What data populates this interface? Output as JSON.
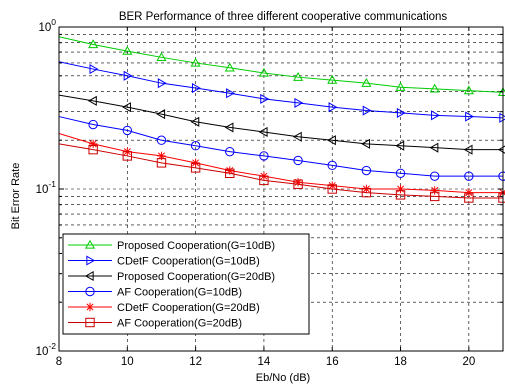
{
  "chart_data": {
    "type": "line",
    "title": "BER Performance of three different cooperative communications",
    "xlabel": "Eb/No (dB)",
    "ylabel": "Bit Error Rate",
    "x": [
      8,
      9,
      10,
      11,
      12,
      13,
      14,
      15,
      16,
      17,
      18,
      19,
      20,
      21
    ],
    "xlim": [
      8,
      21
    ],
    "ylim": [
      0.01,
      1
    ],
    "yscale": "log",
    "x_ticks": [
      8,
      10,
      12,
      14,
      16,
      18,
      20
    ],
    "x_tick_labels": [
      "8",
      "10",
      "12",
      "14",
      "16",
      "18",
      "20"
    ],
    "y_ticks": [
      0.01,
      0.1,
      1
    ],
    "y_tick_labels": [
      {
        "base": "10",
        "exp": "-2"
      },
      {
        "base": "10",
        "exp": "-1"
      },
      {
        "base": "10",
        "exp": "0"
      }
    ],
    "grid": true,
    "legend_position": "bottom-left",
    "series": [
      {
        "name": "Proposed Cooperation(G=10dB)",
        "color": "#00cc00",
        "marker": "triangle-up",
        "values": [
          0.87,
          0.78,
          0.71,
          0.65,
          0.6,
          0.56,
          0.52,
          0.49,
          0.47,
          0.45,
          0.425,
          0.415,
          0.405,
          0.395
        ]
      },
      {
        "name": "CDetF Cooperation(G=10dB)",
        "color": "#0000ff",
        "marker": "triangle-right",
        "values": [
          0.61,
          0.55,
          0.5,
          0.45,
          0.42,
          0.39,
          0.36,
          0.34,
          0.32,
          0.305,
          0.295,
          0.285,
          0.28,
          0.275
        ]
      },
      {
        "name": "Proposed Cooperation(G=20dB)",
        "color": "#000000",
        "marker": "triangle-left",
        "values": [
          0.38,
          0.35,
          0.32,
          0.29,
          0.26,
          0.24,
          0.225,
          0.21,
          0.2,
          0.19,
          0.185,
          0.18,
          0.175,
          0.175
        ]
      },
      {
        "name": "AF Cooperation(G=10dB)",
        "color": "#0000ff",
        "marker": "circle",
        "values": [
          0.28,
          0.25,
          0.23,
          0.2,
          0.185,
          0.17,
          0.16,
          0.15,
          0.14,
          0.13,
          0.125,
          0.12,
          0.12,
          0.12
        ]
      },
      {
        "name": "CDetF Cooperation(G=20dB)",
        "color": "#ff0000",
        "marker": "star",
        "values": [
          0.22,
          0.19,
          0.17,
          0.16,
          0.145,
          0.13,
          0.12,
          0.11,
          0.105,
          0.1,
          0.1,
          0.098,
          0.095,
          0.095
        ]
      },
      {
        "name": "AF Cooperation(G=20dB)",
        "color": "#cc0000",
        "marker": "square",
        "values": [
          0.19,
          0.175,
          0.16,
          0.145,
          0.135,
          0.125,
          0.113,
          0.107,
          0.1,
          0.095,
          0.092,
          0.09,
          0.088,
          0.088
        ]
      }
    ]
  }
}
